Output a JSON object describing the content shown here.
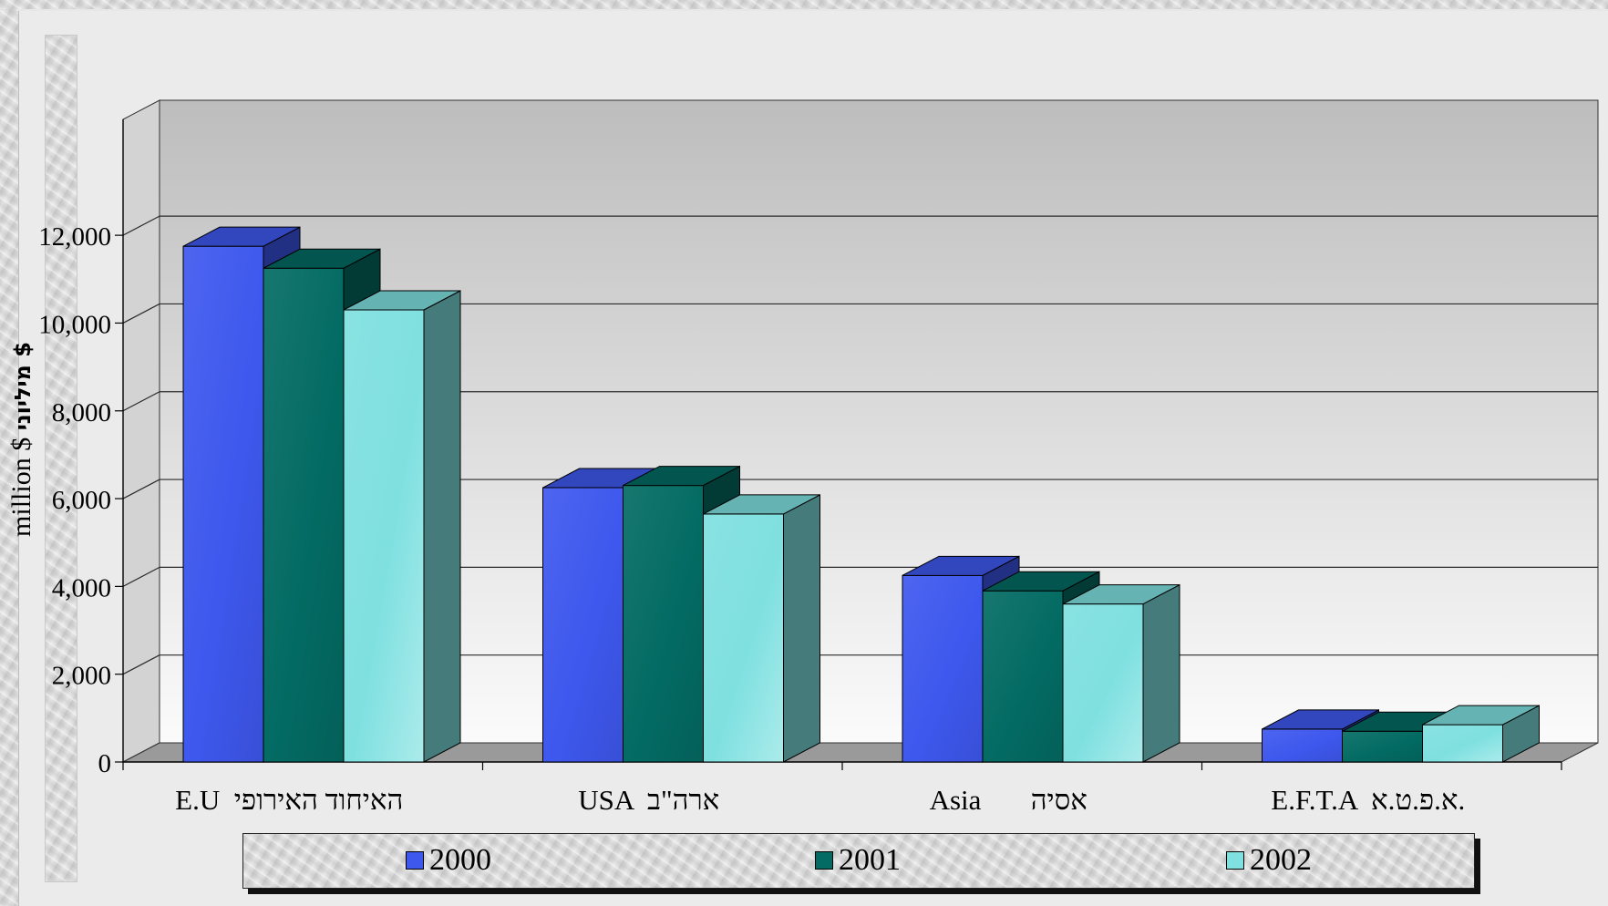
{
  "slide": {
    "title": ""
  },
  "chart_data": {
    "type": "bar",
    "categories": [
      "E.U  האיחוד האירופי",
      "USA  ארה\"ב",
      "Asia       אסיה",
      "E.F.T.A  א.פ.ט.א."
    ],
    "series": [
      {
        "name": "2000",
        "values": [
          11750,
          6250,
          4250,
          750
        ],
        "color": "#3e58ee"
      },
      {
        "name": "2001",
        "values": [
          11250,
          6300,
          3900,
          700
        ],
        "color": "#036b63"
      },
      {
        "name": "2002",
        "values": [
          10300,
          5650,
          3600,
          850
        ],
        "color": "#7fe0e0"
      }
    ],
    "ylabel_main": "million $",
    "ylabel_hebrew": "מיליוני $",
    "ylim": [
      0,
      12000
    ],
    "yticks": [
      "0",
      "2,000",
      "4,000",
      "6,000",
      "8,000",
      "10,000",
      "12,000"
    ],
    "grid": true,
    "legend_position": "bottom"
  }
}
